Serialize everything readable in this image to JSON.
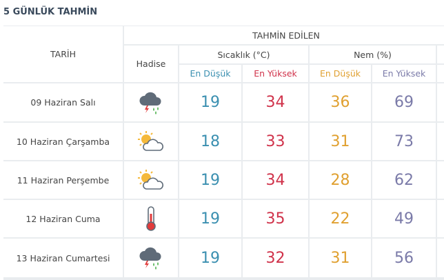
{
  "header": {
    "title": "5 GÜNLÜK TAHMİN"
  },
  "table": {
    "date_header": "TARİH",
    "forecast_header": "TAHMİN EDİLEN",
    "event_header": "Hadise",
    "groups": [
      "Sıcaklık (°C)",
      "Nem (%)"
    ],
    "subheaders": [
      "En Düşük",
      "En Yüksek",
      "En Düşük",
      "En Yüksek"
    ],
    "rows": [
      [
        "09 Haziran Salı",
        19,
        34,
        36,
        69
      ],
      [
        "10 Haziran Çarşamba",
        18,
        33,
        31,
        73
      ],
      [
        "11 Haziran Perşembe",
        19,
        34,
        28,
        62
      ],
      [
        "12 Haziran Cuma",
        19,
        35,
        22,
        49
      ],
      [
        "13 Haziran Cumartesi",
        19,
        32,
        31,
        56
      ]
    ]
  }
}
